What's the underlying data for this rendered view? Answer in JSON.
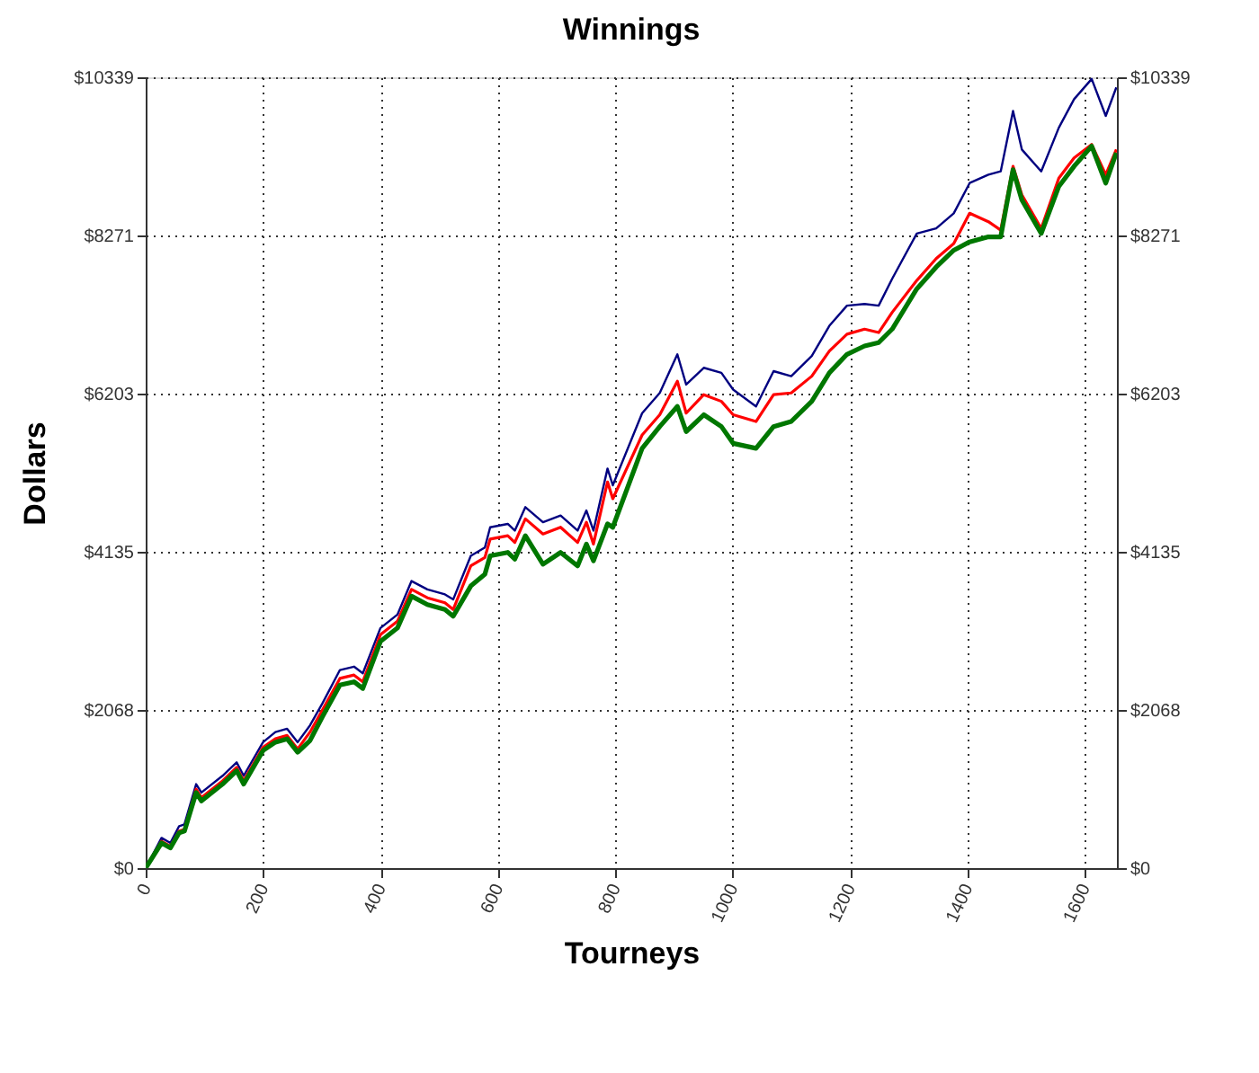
{
  "chart_data": {
    "type": "line",
    "title": "Winnings",
    "xlabel": "Tourneys",
    "ylabel": "Dollars",
    "x": [
      0,
      27,
      42,
      57,
      66,
      86,
      95,
      131,
      155,
      167,
      200,
      221,
      241,
      259,
      280,
      301,
      331,
      355,
      370,
      400,
      429,
      453,
      480,
      510,
      524,
      554,
      578,
      587,
      617,
      629,
      647,
      677,
      707,
      736,
      751,
      763,
      787,
      796,
      846,
      876,
      906,
      921,
      951,
      981,
      1001,
      1040,
      1070,
      1100,
      1135,
      1165,
      1195,
      1225,
      1249,
      1272,
      1314,
      1347,
      1377,
      1404,
      1436,
      1457,
      1478,
      1493,
      1526,
      1556,
      1582,
      1612,
      1636,
      1654
    ],
    "series": [
      {
        "color": "#000080",
        "values": [
          0,
          395,
          329,
          549,
          571,
          1098,
          988,
          1207,
          1383,
          1207,
          1646,
          1778,
          1822,
          1646,
          1866,
          2151,
          2590,
          2634,
          2546,
          3139,
          3314,
          3753,
          3644,
          3578,
          3512,
          4083,
          4192,
          4456,
          4500,
          4412,
          4719,
          4522,
          4610,
          4412,
          4675,
          4412,
          5224,
          5005,
          5948,
          6212,
          6717,
          6322,
          6541,
          6475,
          6256,
          6036,
          6497,
          6431,
          6695,
          7090,
          7353,
          7375,
          7353,
          7704,
          8297,
          8363,
          8561,
          8956,
          9065,
          9109,
          9899,
          9395,
          9109,
          9680,
          10053,
          10317,
          9834,
          10207
        ]
      },
      {
        "color": "#ff0000",
        "values": [
          0,
          351,
          285,
          483,
          505,
          1032,
          922,
          1141,
          1317,
          1141,
          1580,
          1690,
          1734,
          1558,
          1778,
          2063,
          2480,
          2524,
          2436,
          3051,
          3227,
          3644,
          3534,
          3468,
          3380,
          3951,
          4061,
          4302,
          4346,
          4258,
          4566,
          4368,
          4456,
          4258,
          4522,
          4236,
          5049,
          4829,
          5663,
          5927,
          6366,
          5948,
          6190,
          6102,
          5927,
          5839,
          6190,
          6212,
          6431,
          6761,
          6980,
          7046,
          7002,
          7265,
          7683,
          7968,
          8165,
          8561,
          8451,
          8341,
          9175,
          8802,
          8363,
          9021,
          9285,
          9460,
          9065,
          9395
        ]
      },
      {
        "color": "#007700",
        "values": [
          0,
          329,
          263,
          461,
          483,
          988,
          878,
          1098,
          1273,
          1098,
          1537,
          1646,
          1690,
          1515,
          1668,
          1976,
          2393,
          2436,
          2349,
          2963,
          3139,
          3556,
          3446,
          3380,
          3293,
          3688,
          3841,
          4083,
          4127,
          4039,
          4346,
          3973,
          4127,
          3951,
          4236,
          4017,
          4500,
          4456,
          5488,
          5773,
          6036,
          5707,
          5927,
          5773,
          5553,
          5488,
          5773,
          5839,
          6102,
          6475,
          6717,
          6826,
          6870,
          7046,
          7573,
          7858,
          8078,
          8187,
          8253,
          8253,
          9131,
          8736,
          8297,
          8912,
          9175,
          9439,
          8956,
          9351
        ]
      }
    ],
    "xlim": [
      0,
      1655
    ],
    "xticks": [
      0,
      200,
      400,
      600,
      800,
      1000,
      1200,
      1400,
      1600
    ],
    "ylim": [
      0,
      10339
    ],
    "yticks": [
      {
        "value": 0,
        "label": "$0"
      },
      {
        "value": 2068,
        "label": "$2068"
      },
      {
        "value": 4135,
        "label": "$4135"
      },
      {
        "value": 6203,
        "label": "$6203"
      },
      {
        "value": 8271,
        "label": "$8271"
      },
      {
        "value": 10339,
        "label": "$10339"
      }
    ],
    "y2lim": [
      0,
      10339
    ],
    "y2ticks": [
      {
        "value": 0,
        "label": "$0"
      },
      {
        "value": 2068,
        "label": "$2068"
      },
      {
        "value": 4135,
        "label": "$4135"
      },
      {
        "value": 6203,
        "label": "$6203"
      },
      {
        "value": 8271,
        "label": "$8271"
      },
      {
        "value": 10339,
        "label": "$10339"
      }
    ],
    "grid": true,
    "legend": false,
    "marker": "none",
    "line_style": "solid"
  }
}
